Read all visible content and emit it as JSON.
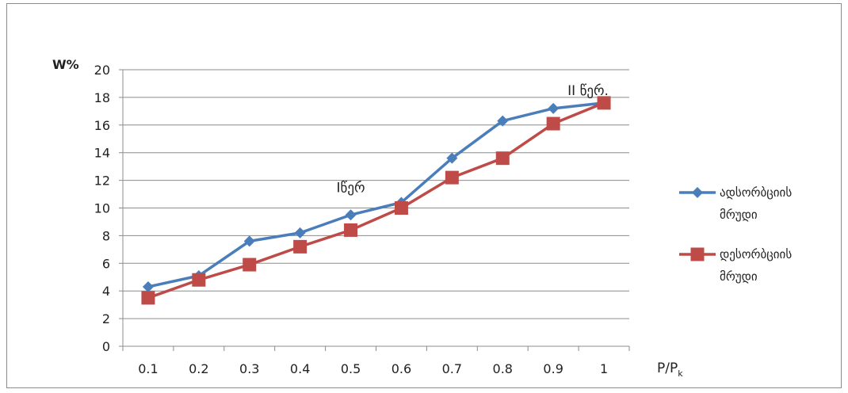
{
  "chart_data": {
    "type": "line",
    "ylabel": "W%",
    "xlabel": "P/P",
    "xlabel_sub": "k",
    "categories": [
      "0.1",
      "0.2",
      "0.3",
      "0.4",
      "0.5",
      "0.6",
      "0.7",
      "0.8",
      "0.9",
      "1"
    ],
    "ylim": [
      0,
      20
    ],
    "yticks": [
      "0",
      "2",
      "4",
      "6",
      "8",
      "10",
      "12",
      "14",
      "16",
      "18",
      "20"
    ],
    "grid": true,
    "legend_position": "right",
    "series": [
      {
        "name_line1": "ადსორბციის",
        "name_line2": "მრუდი",
        "color": "#4a7ebb",
        "marker": "diamond",
        "values": [
          4.3,
          5.1,
          7.6,
          8.2,
          9.5,
          10.4,
          13.6,
          16.3,
          17.2,
          17.6
        ]
      },
      {
        "name_line1": "დესორბციის",
        "name_line2": "მრუდი",
        "color": "#be4b48",
        "marker": "square",
        "values": [
          3.5,
          4.8,
          5.9,
          7.2,
          8.4,
          10.0,
          12.2,
          13.6,
          16.1,
          17.6
        ]
      }
    ],
    "annotations": [
      {
        "text": "Iწერ",
        "category": "0.5",
        "y": 11.5
      },
      {
        "text": "II წერ.",
        "category": "1",
        "y": 18.5
      }
    ]
  }
}
